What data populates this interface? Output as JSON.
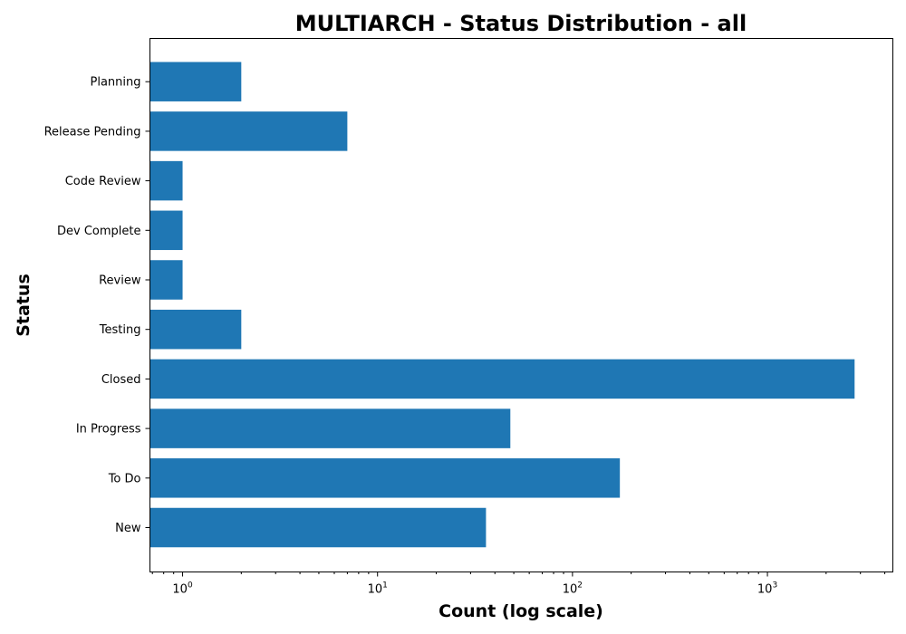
{
  "chart_data": {
    "type": "bar",
    "orientation": "horizontal",
    "title": "MULTIARCH - Status Distribution - all",
    "xlabel": "Count (log scale)",
    "ylabel": "Status",
    "x_scale": "log",
    "xlim": [
      0.68,
      4400
    ],
    "x_ticks": [
      {
        "value": 1,
        "base": "10",
        "exp": "0"
      },
      {
        "value": 10,
        "base": "10",
        "exp": "1"
      },
      {
        "value": 100,
        "base": "10",
        "exp": "2"
      },
      {
        "value": 1000,
        "base": "10",
        "exp": "3"
      }
    ],
    "categories": [
      "New",
      "To Do",
      "In Progress",
      "Closed",
      "Testing",
      "Review",
      "Dev Complete",
      "Code Review",
      "Release Pending",
      "Planning"
    ],
    "values": [
      36,
      175,
      48,
      2800,
      2,
      1,
      1,
      1,
      7,
      2
    ],
    "color": "#1f77b4",
    "grid": false,
    "legend": "none"
  }
}
